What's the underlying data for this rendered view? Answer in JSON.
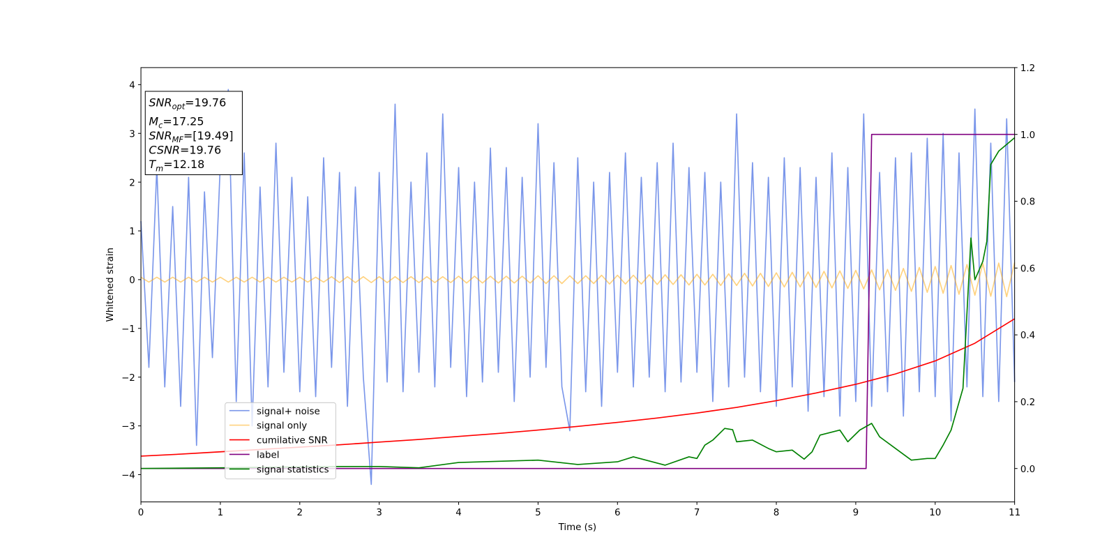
{
  "chart_data": {
    "type": "line",
    "xlabel": "Time (s)",
    "ylabel": "Whitened strain",
    "xlim": [
      0,
      11
    ],
    "ylim": [
      -4.56,
      4.35
    ],
    "y2lim": [
      -0.1,
      1.2
    ],
    "xticks": [
      0,
      1,
      2,
      3,
      4,
      5,
      6,
      7,
      8,
      9,
      10,
      11
    ],
    "yticks": [
      {
        "value": -4,
        "label": "−4"
      },
      {
        "value": -3,
        "label": "−3"
      },
      {
        "value": -2,
        "label": "−2"
      },
      {
        "value": -1,
        "label": "−1"
      },
      0,
      1,
      2,
      3,
      4
    ],
    "y2ticks": [
      {
        "value": 0,
        "label": "0.0"
      },
      {
        "value": 0.2,
        "label": "0.2"
      },
      {
        "value": 0.4,
        "label": "0.4"
      },
      {
        "value": 0.6,
        "label": "0.6"
      },
      {
        "value": 0.8,
        "label": "0.8"
      },
      {
        "value": 1,
        "label": "1.0"
      },
      {
        "value": 1.2,
        "label": "1.2"
      }
    ],
    "x": [
      0,
      0.1,
      0.2,
      0.3,
      0.4,
      0.5,
      0.6,
      0.7,
      0.8,
      0.9,
      1,
      1.1,
      1.2,
      1.3,
      1.4,
      1.5,
      1.6,
      1.7,
      1.8,
      1.9,
      2,
      2.1,
      2.2,
      2.3,
      2.4,
      2.5,
      2.6,
      2.7,
      2.8,
      2.9,
      3,
      3.1,
      3.2,
      3.3,
      3.4,
      3.5,
      3.6,
      3.7,
      3.8,
      3.9,
      4,
      4.1,
      4.2,
      4.3,
      4.4,
      4.5,
      4.6,
      4.7,
      4.8,
      4.9,
      5,
      5.1,
      5.2,
      5.3,
      5.4,
      5.5,
      5.6,
      5.7,
      5.8,
      5.9,
      6,
      6.1,
      6.2,
      6.3,
      6.4,
      6.5,
      6.6,
      6.7,
      6.8,
      6.9,
      7,
      7.1,
      7.2,
      7.3,
      7.4,
      7.5,
      7.6,
      7.7,
      7.8,
      7.9,
      8,
      8.1,
      8.2,
      8.3,
      8.4,
      8.5,
      8.6,
      8.7,
      8.8,
      8.9,
      9,
      9.1,
      9.2,
      9.3,
      9.4,
      9.5,
      9.6,
      9.7,
      9.8,
      9.9,
      10,
      10.1,
      10.2,
      10.3,
      10.4,
      10.5,
      10.6,
      10.7,
      10.8,
      10.9,
      11
    ],
    "series": [
      {
        "name": "signal+ noise",
        "color": "#4169e1",
        "alpha": 0.7,
        "values": [
          1.2,
          -1.8,
          2.3,
          -2.2,
          1.5,
          -2.6,
          2.1,
          -3.4,
          1.8,
          -1.6,
          2.4,
          3.9,
          -2.5,
          2.6,
          -3.0,
          1.9,
          -2.2,
          2.8,
          -1.9,
          2.1,
          -2.3,
          1.7,
          -2.4,
          2.5,
          -1.8,
          2.2,
          -2.6,
          1.9,
          -2.0,
          -4.2,
          2.2,
          -2.1,
          3.6,
          -2.3,
          2.0,
          -1.9,
          2.6,
          -2.2,
          3.4,
          -1.8,
          2.3,
          -2.4,
          2.0,
          -2.1,
          2.7,
          -1.9,
          2.3,
          -2.5,
          2.1,
          -2.0,
          3.2,
          -1.8,
          2.4,
          -2.2,
          -3.1,
          2.5,
          -2.3,
          2.0,
          -2.6,
          2.2,
          -1.9,
          2.6,
          -2.2,
          2.1,
          -2.0,
          2.4,
          -2.3,
          2.8,
          -2.1,
          2.3,
          -1.9,
          2.2,
          -2.5,
          2.0,
          -2.2,
          3.4,
          -2.0,
          2.4,
          -2.3,
          2.1,
          -2.6,
          2.5,
          -2.2,
          2.3,
          -2.7,
          2.1,
          -2.4,
          2.6,
          -2.8,
          2.3,
          -2.5,
          3.4,
          -2.6,
          2.2,
          -2.3,
          2.5,
          -2.8,
          2.6,
          -2.3,
          2.9,
          -2.4,
          3.0,
          -2.9,
          2.6,
          -2.2,
          3.5,
          -2.4,
          2.8,
          -2.5,
          3.3,
          -2.1
        ]
      },
      {
        "name": "signal only",
        "color": "#ffa500",
        "alpha": 0.5,
        "values": [
          0.05,
          -0.05,
          0.05,
          -0.05,
          0.05,
          -0.05,
          0.05,
          -0.05,
          0.05,
          -0.05,
          0.05,
          -0.05,
          0.05,
          -0.05,
          0.05,
          -0.05,
          0.05,
          -0.05,
          0.05,
          -0.05,
          0.05,
          -0.05,
          0.05,
          -0.05,
          0.06,
          -0.06,
          0.06,
          -0.06,
          0.06,
          -0.06,
          0.06,
          -0.06,
          0.06,
          -0.06,
          0.06,
          -0.06,
          0.06,
          -0.06,
          0.06,
          -0.06,
          0.07,
          -0.07,
          0.07,
          -0.07,
          0.07,
          -0.07,
          0.07,
          -0.07,
          0.07,
          -0.07,
          0.08,
          -0.08,
          0.08,
          -0.08,
          0.08,
          -0.08,
          0.08,
          -0.08,
          0.09,
          -0.09,
          0.09,
          -0.09,
          0.09,
          -0.09,
          0.1,
          -0.1,
          0.1,
          -0.1,
          0.1,
          -0.11,
          0.11,
          -0.11,
          0.11,
          -0.12,
          0.12,
          -0.12,
          0.13,
          -0.13,
          0.13,
          -0.14,
          0.14,
          -0.15,
          0.15,
          -0.15,
          0.16,
          -0.16,
          0.17,
          -0.17,
          0.18,
          -0.18,
          0.19,
          -0.19,
          0.2,
          -0.21,
          0.21,
          -0.22,
          0.23,
          -0.24,
          0.25,
          -0.26,
          0.27,
          -0.28,
          0.29,
          -0.3,
          0.31,
          -0.32,
          0.33,
          -0.34,
          0.34,
          -0.35,
          0.35
        ]
      },
      {
        "name": "cumilative SNR",
        "color": "#ff0000",
        "axis": "y2",
        "x": [
          0,
          0.5,
          1,
          1.5,
          2,
          2.5,
          3,
          3.5,
          4,
          4.5,
          5,
          5.5,
          6,
          6.5,
          7,
          7.5,
          8,
          8.5,
          9,
          9.5,
          10,
          10.5,
          11
        ],
        "values": [
          0.037,
          0.043,
          0.05,
          0.057,
          0.064,
          0.071,
          0.079,
          0.087,
          0.096,
          0.105,
          0.115,
          0.126,
          0.138,
          0.151,
          0.166,
          0.183,
          0.203,
          0.226,
          0.252,
          0.283,
          0.322,
          0.375,
          0.448
        ]
      },
      {
        "name": "label",
        "color": "#800080",
        "axis": "y2",
        "x": [
          0,
          9.13,
          9.2,
          11
        ],
        "values": [
          0,
          0,
          1,
          1
        ]
      },
      {
        "name": "signal statistics",
        "color": "#008000",
        "axis": "y2",
        "x": [
          0,
          1,
          2,
          2.5,
          3,
          3.5,
          4,
          5,
          5.5,
          6,
          6.2,
          6.6,
          6.9,
          7,
          7.1,
          7.2,
          7.35,
          7.45,
          7.5,
          7.7,
          7.9,
          8,
          8.2,
          8.35,
          8.45,
          8.55,
          8.8,
          8.9,
          9.05,
          9.2,
          9.3,
          9.5,
          9.7,
          9.9,
          10,
          10.1,
          10.2,
          10.35,
          10.45,
          10.5,
          10.6,
          10.65,
          10.7,
          10.8,
          11
        ],
        "values": [
          0,
          0.002,
          0.005,
          0.006,
          0.006,
          0.002,
          0.018,
          0.025,
          0.012,
          0.02,
          0.035,
          0.01,
          0.035,
          0.03,
          0.07,
          0.085,
          0.12,
          0.116,
          0.08,
          0.085,
          0.06,
          0.05,
          0.055,
          0.028,
          0.05,
          0.1,
          0.115,
          0.08,
          0.115,
          0.135,
          0.095,
          0.06,
          0.025,
          0.03,
          0.03,
          0.07,
          0.115,
          0.24,
          0.69,
          0.565,
          0.62,
          0.68,
          0.91,
          0.95,
          0.99
        ]
      }
    ],
    "annotation": [
      {
        "symbol": "SNR",
        "subscript": "opt",
        "text": "=19.76"
      },
      {
        "symbol": "M",
        "subscript": "c",
        "text": "=17.25"
      },
      {
        "symbol": "SNR",
        "subscript": "MF",
        "text": "=[19.49]"
      },
      {
        "symbol": "CSNR",
        "text": "=19.76"
      },
      {
        "symbol": "T",
        "subscript": "m",
        "text": "=12.18"
      }
    ]
  }
}
